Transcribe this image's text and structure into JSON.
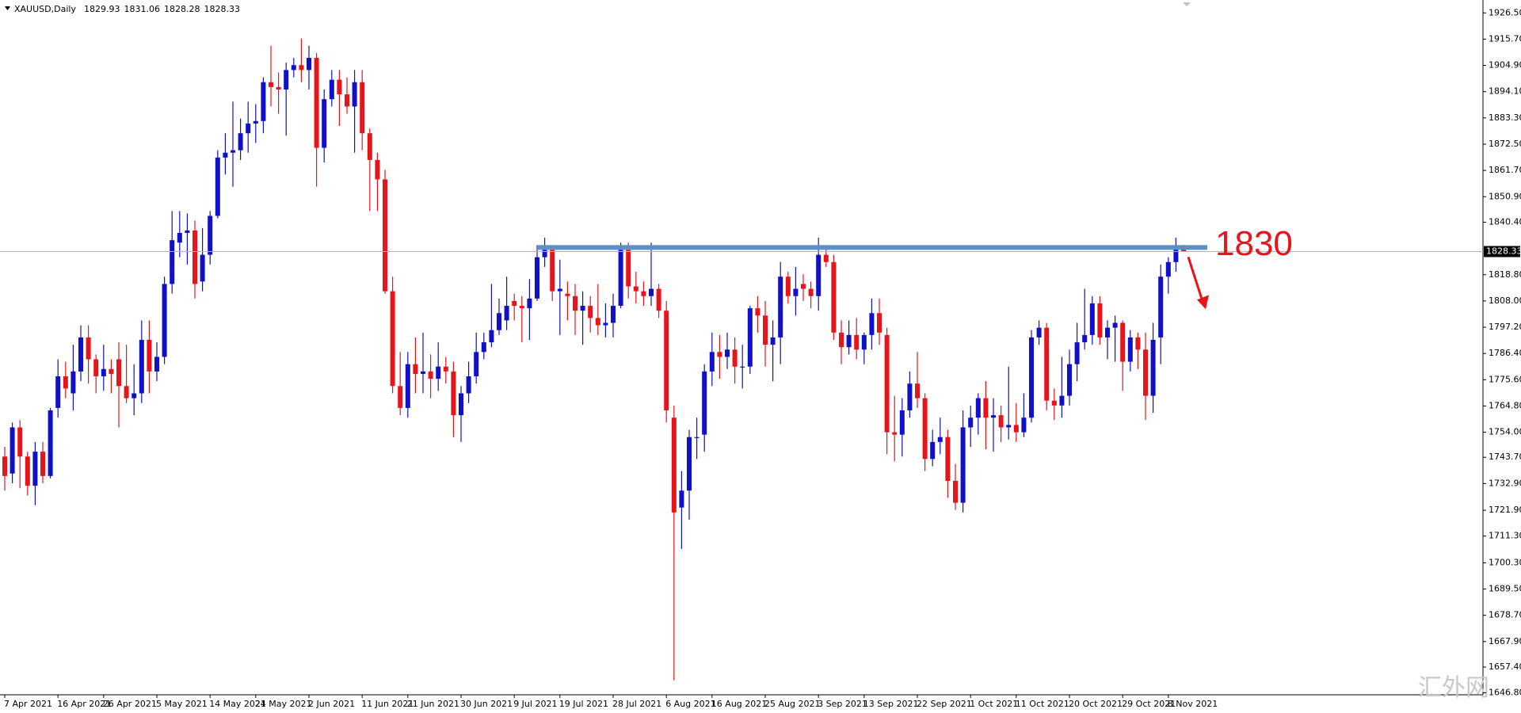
{
  "chart_data": {
    "type": "candlestick",
    "title": "XAUUSD,Daily",
    "up_color": "#1010c8",
    "down_color": "#e8141b",
    "ylim": [
      1646.0,
      1930.5
    ],
    "yticks": [
      {
        "value": 1926.5,
        "label": "1926.50"
      },
      {
        "value": 1915.7,
        "label": "1915.70"
      },
      {
        "value": 1904.9,
        "label": "1904.90"
      },
      {
        "value": 1894.1,
        "label": "1894.10"
      },
      {
        "value": 1883.3,
        "label": "1883.30"
      },
      {
        "value": 1872.5,
        "label": "1872.50"
      },
      {
        "value": 1861.7,
        "label": "1861.70"
      },
      {
        "value": 1850.9,
        "label": "1850.90"
      },
      {
        "value": 1840.4,
        "label": "1840.40"
      },
      {
        "value": 1818.8,
        "label": "1818.80"
      },
      {
        "value": 1808.0,
        "label": "1808.00"
      },
      {
        "value": 1797.2,
        "label": "1797.20"
      },
      {
        "value": 1786.4,
        "label": "1786.40"
      },
      {
        "value": 1775.6,
        "label": "1775.60"
      },
      {
        "value": 1764.8,
        "label": "1764.80"
      },
      {
        "value": 1754.0,
        "label": "1754.00"
      },
      {
        "value": 1743.7,
        "label": "1743.70"
      },
      {
        "value": 1732.9,
        "label": "1732.90"
      },
      {
        "value": 1721.9,
        "label": "1721.90"
      },
      {
        "value": 1711.3,
        "label": "1711.30"
      },
      {
        "value": 1700.3,
        "label": "1700.30"
      },
      {
        "value": 1689.5,
        "label": "1689.50"
      },
      {
        "value": 1678.7,
        "label": "1678.70"
      },
      {
        "value": 1667.9,
        "label": "1667.90"
      },
      {
        "value": 1657.4,
        "label": "1657.40"
      },
      {
        "value": 1646.8,
        "label": "1646.80"
      }
    ],
    "resistance_level": 1830,
    "watermark": "汇外网",
    "categories": [
      "7 Apr 2021",
      null,
      null,
      null,
      null,
      null,
      null,
      "16 Apr 2021",
      null,
      null,
      null,
      null,
      null,
      "26 Apr 2021",
      null,
      null,
      null,
      null,
      null,
      null,
      "5 May 2021",
      null,
      null,
      null,
      null,
      null,
      null,
      "14 May 2021",
      null,
      null,
      null,
      null,
      null,
      "24 May 2021",
      null,
      null,
      null,
      null,
      null,
      null,
      "2 Jun 2021",
      null,
      null,
      null,
      null,
      null,
      null,
      "11 Jun 2021",
      null,
      null,
      null,
      null,
      null,
      "21 Jun 2021",
      null,
      null,
      null,
      null,
      null,
      null,
      "30 Jun 2021",
      null,
      null,
      null,
      null,
      null,
      null,
      "9 Jul 2021",
      null,
      null,
      null,
      null,
      null,
      "19 Jul 2021",
      null,
      null,
      null,
      null,
      null,
      null,
      "28 Jul 2021",
      null,
      null,
      null,
      null,
      null,
      null,
      "6 Aug 2021",
      null,
      null,
      null,
      null,
      null,
      "16 Aug 2021",
      null,
      null,
      null,
      null,
      null,
      null,
      "25 Aug 2021",
      null,
      null,
      null,
      null,
      null,
      null,
      "3 Sep 2021",
      null,
      null,
      null,
      null,
      null,
      "13 Sep 2021",
      null,
      null,
      null,
      null,
      null,
      null,
      "22 Sep 2021",
      null,
      null,
      null,
      null,
      null,
      null,
      "1 Oct 2021",
      null,
      null,
      null,
      null,
      null,
      "11 Oct 2021",
      null,
      null,
      null,
      null,
      null,
      null,
      "20 Oct 2021",
      null,
      null,
      null,
      null,
      null,
      null,
      "29 Oct 2021",
      null,
      null,
      null,
      null,
      null,
      "8 Nov 2021",
      null,
      null
    ],
    "ohlc": [
      [
        1744,
        1748,
        1730,
        1736
      ],
      [
        1737,
        1758,
        1733,
        1756
      ],
      [
        1756,
        1759,
        1731,
        1744
      ],
      [
        1744,
        1746,
        1728,
        1732
      ],
      [
        1732,
        1750,
        1724,
        1746
      ],
      [
        1746,
        1750,
        1733,
        1736
      ],
      [
        1736,
        1764,
        1735,
        1763
      ],
      [
        1764,
        1784,
        1760,
        1777
      ],
      [
        1777,
        1783,
        1768,
        1772
      ],
      [
        1770,
        1790,
        1763,
        1779
      ],
      [
        1779,
        1798,
        1775,
        1793
      ],
      [
        1793,
        1798,
        1774,
        1784
      ],
      [
        1784,
        1786,
        1770,
        1777
      ],
      [
        1777,
        1790,
        1771,
        1780
      ],
      [
        1780,
        1784,
        1770,
        1778
      ],
      [
        1784,
        1791,
        1756,
        1773
      ],
      [
        1773,
        1790,
        1766,
        1768
      ],
      [
        1768,
        1782,
        1761,
        1770
      ],
      [
        1770,
        1800,
        1766,
        1792
      ],
      [
        1792,
        1800,
        1770,
        1779
      ],
      [
        1779,
        1791,
        1775,
        1785
      ],
      [
        1785,
        1818,
        1782,
        1815
      ],
      [
        1815,
        1845,
        1811,
        1833
      ],
      [
        1832,
        1845,
        1826,
        1836
      ],
      [
        1836,
        1844,
        1823,
        1837
      ],
      [
        1837,
        1841,
        1809,
        1815
      ],
      [
        1816,
        1838,
        1812,
        1827
      ],
      [
        1827,
        1845,
        1823,
        1843
      ],
      [
        1843,
        1870,
        1842,
        1867
      ],
      [
        1867,
        1877,
        1860,
        1869
      ],
      [
        1869,
        1890,
        1855,
        1870
      ],
      [
        1870,
        1883,
        1866,
        1877
      ],
      [
        1877,
        1890,
        1869,
        1881
      ],
      [
        1881,
        1889,
        1873,
        1882
      ],
      [
        1882,
        1900,
        1877,
        1898
      ],
      [
        1898,
        1913,
        1888,
        1896
      ],
      [
        1896,
        1902,
        1885,
        1895
      ],
      [
        1895,
        1906,
        1876,
        1903
      ],
      [
        1903,
        1908,
        1900,
        1905
      ],
      [
        1905,
        1916,
        1898,
        1903
      ],
      [
        1903,
        1913,
        1895,
        1908
      ],
      [
        1908,
        1910,
        1855,
        1871
      ],
      [
        1871,
        1895,
        1865,
        1891
      ],
      [
        1891,
        1903,
        1888,
        1899
      ],
      [
        1899,
        1903,
        1880,
        1893
      ],
      [
        1893,
        1900,
        1885,
        1888
      ],
      [
        1888,
        1903,
        1869,
        1898
      ],
      [
        1898,
        1903,
        1870,
        1877
      ],
      [
        1877,
        1879,
        1845,
        1866
      ],
      [
        1866,
        1869,
        1845,
        1858
      ],
      [
        1858,
        1862,
        1811,
        1812
      ],
      [
        1812,
        1818,
        1770,
        1773
      ],
      [
        1773,
        1787,
        1761,
        1764
      ],
      [
        1764,
        1787,
        1760,
        1782
      ],
      [
        1782,
        1793,
        1770,
        1778
      ],
      [
        1778,
        1795,
        1770,
        1779
      ],
      [
        1779,
        1786,
        1768,
        1776
      ],
      [
        1776,
        1791,
        1771,
        1781
      ],
      [
        1781,
        1785,
        1774,
        1779
      ],
      [
        1779,
        1783,
        1752,
        1761
      ],
      [
        1761,
        1773,
        1750,
        1770
      ],
      [
        1770,
        1783,
        1766,
        1777
      ],
      [
        1777,
        1795,
        1774,
        1787
      ],
      [
        1787,
        1795,
        1784,
        1791
      ],
      [
        1791,
        1815,
        1789,
        1796
      ],
      [
        1796,
        1809,
        1794,
        1803
      ],
      [
        1800,
        1818,
        1796,
        1806
      ],
      [
        1808,
        1811,
        1800,
        1806
      ],
      [
        1806,
        1810,
        1791,
        1805
      ],
      [
        1805,
        1817,
        1792,
        1809
      ],
      [
        1809,
        1829,
        1808,
        1826
      ],
      [
        1826,
        1834,
        1822,
        1829
      ],
      [
        1829,
        1831,
        1808,
        1812
      ],
      [
        1812,
        1825,
        1794,
        1813
      ],
      [
        1811,
        1816,
        1800,
        1810
      ],
      [
        1810,
        1815,
        1794,
        1804
      ],
      [
        1804,
        1812,
        1790,
        1806
      ],
      [
        1806,
        1810,
        1795,
        1801
      ],
      [
        1801,
        1815,
        1794,
        1798
      ],
      [
        1798,
        1807,
        1793,
        1799
      ],
      [
        1799,
        1811,
        1793,
        1806
      ],
      [
        1806,
        1832,
        1805,
        1829
      ],
      [
        1829,
        1832,
        1809,
        1814
      ],
      [
        1814,
        1820,
        1807,
        1812
      ],
      [
        1812,
        1816,
        1806,
        1810
      ],
      [
        1810,
        1832,
        1806,
        1813
      ],
      [
        1813,
        1815,
        1801,
        1804
      ],
      [
        1804,
        1808,
        1758,
        1763
      ],
      [
        1760,
        1765,
        1652,
        1721
      ],
      [
        1723,
        1738,
        1706,
        1730
      ],
      [
        1730,
        1755,
        1718,
        1752
      ],
      [
        1752,
        1760,
        1743,
        1752
      ],
      [
        1753,
        1782,
        1746,
        1779
      ],
      [
        1779,
        1795,
        1773,
        1787
      ],
      [
        1787,
        1794,
        1776,
        1785
      ],
      [
        1785,
        1795,
        1780,
        1788
      ],
      [
        1788,
        1793,
        1774,
        1781
      ],
      [
        1781,
        1790,
        1772,
        1781
      ],
      [
        1781,
        1806,
        1778,
        1805
      ],
      [
        1805,
        1810,
        1795,
        1802
      ],
      [
        1802,
        1808,
        1781,
        1790
      ],
      [
        1790,
        1800,
        1775,
        1793
      ],
      [
        1793,
        1824,
        1782,
        1818
      ],
      [
        1818,
        1820,
        1807,
        1810
      ],
      [
        1810,
        1822,
        1802,
        1813
      ],
      [
        1815,
        1819,
        1808,
        1813
      ],
      [
        1813,
        1816,
        1805,
        1810
      ],
      [
        1810,
        1834,
        1804,
        1827
      ],
      [
        1827,
        1831,
        1822,
        1824
      ],
      [
        1824,
        1827,
        1792,
        1795
      ],
      [
        1795,
        1800,
        1782,
        1789
      ],
      [
        1789,
        1800,
        1786,
        1794
      ],
      [
        1794,
        1801,
        1784,
        1788
      ],
      [
        1788,
        1795,
        1782,
        1794
      ],
      [
        1794,
        1809,
        1788,
        1803
      ],
      [
        1803,
        1809,
        1790,
        1795
      ],
      [
        1794,
        1797,
        1745,
        1754
      ],
      [
        1754,
        1769,
        1742,
        1753
      ],
      [
        1753,
        1768,
        1744,
        1763
      ],
      [
        1763,
        1779,
        1760,
        1774
      ],
      [
        1774,
        1787,
        1764,
        1768
      ],
      [
        1768,
        1770,
        1738,
        1743
      ],
      [
        1743,
        1755,
        1740,
        1750
      ],
      [
        1750,
        1760,
        1745,
        1752
      ],
      [
        1752,
        1755,
        1727,
        1734
      ],
      [
        1734,
        1741,
        1722,
        1725
      ],
      [
        1725,
        1763,
        1721,
        1756
      ],
      [
        1756,
        1765,
        1748,
        1760
      ],
      [
        1760,
        1770,
        1753,
        1768
      ],
      [
        1768,
        1775,
        1747,
        1760
      ],
      [
        1760,
        1768,
        1746,
        1761
      ],
      [
        1761,
        1765,
        1750,
        1756
      ],
      [
        1756,
        1781,
        1751,
        1757
      ],
      [
        1757,
        1766,
        1750,
        1754
      ],
      [
        1754,
        1770,
        1752,
        1760
      ],
      [
        1760,
        1796,
        1758,
        1793
      ],
      [
        1793,
        1800,
        1790,
        1797
      ],
      [
        1797,
        1799,
        1763,
        1767
      ],
      [
        1767,
        1772,
        1759,
        1765
      ],
      [
        1765,
        1785,
        1760,
        1769
      ],
      [
        1769,
        1788,
        1765,
        1782
      ],
      [
        1782,
        1799,
        1775,
        1791
      ],
      [
        1791,
        1813,
        1788,
        1794
      ],
      [
        1794,
        1810,
        1790,
        1807
      ],
      [
        1807,
        1810,
        1790,
        1793
      ],
      [
        1793,
        1800,
        1784,
        1797
      ],
      [
        1797,
        1802,
        1783,
        1799
      ],
      [
        1799,
        1800,
        1771,
        1783
      ],
      [
        1783,
        1796,
        1779,
        1793
      ],
      [
        1793,
        1795,
        1780,
        1788
      ],
      [
        1788,
        1795,
        1759,
        1769
      ],
      [
        1769,
        1799,
        1762,
        1792
      ],
      [
        1793,
        1823,
        1782,
        1818
      ],
      [
        1818,
        1826,
        1811,
        1824
      ],
      [
        1824,
        1834,
        1820,
        1830
      ],
      [
        1829.93,
        1831.06,
        1828.28,
        1828.33
      ]
    ]
  }
}
